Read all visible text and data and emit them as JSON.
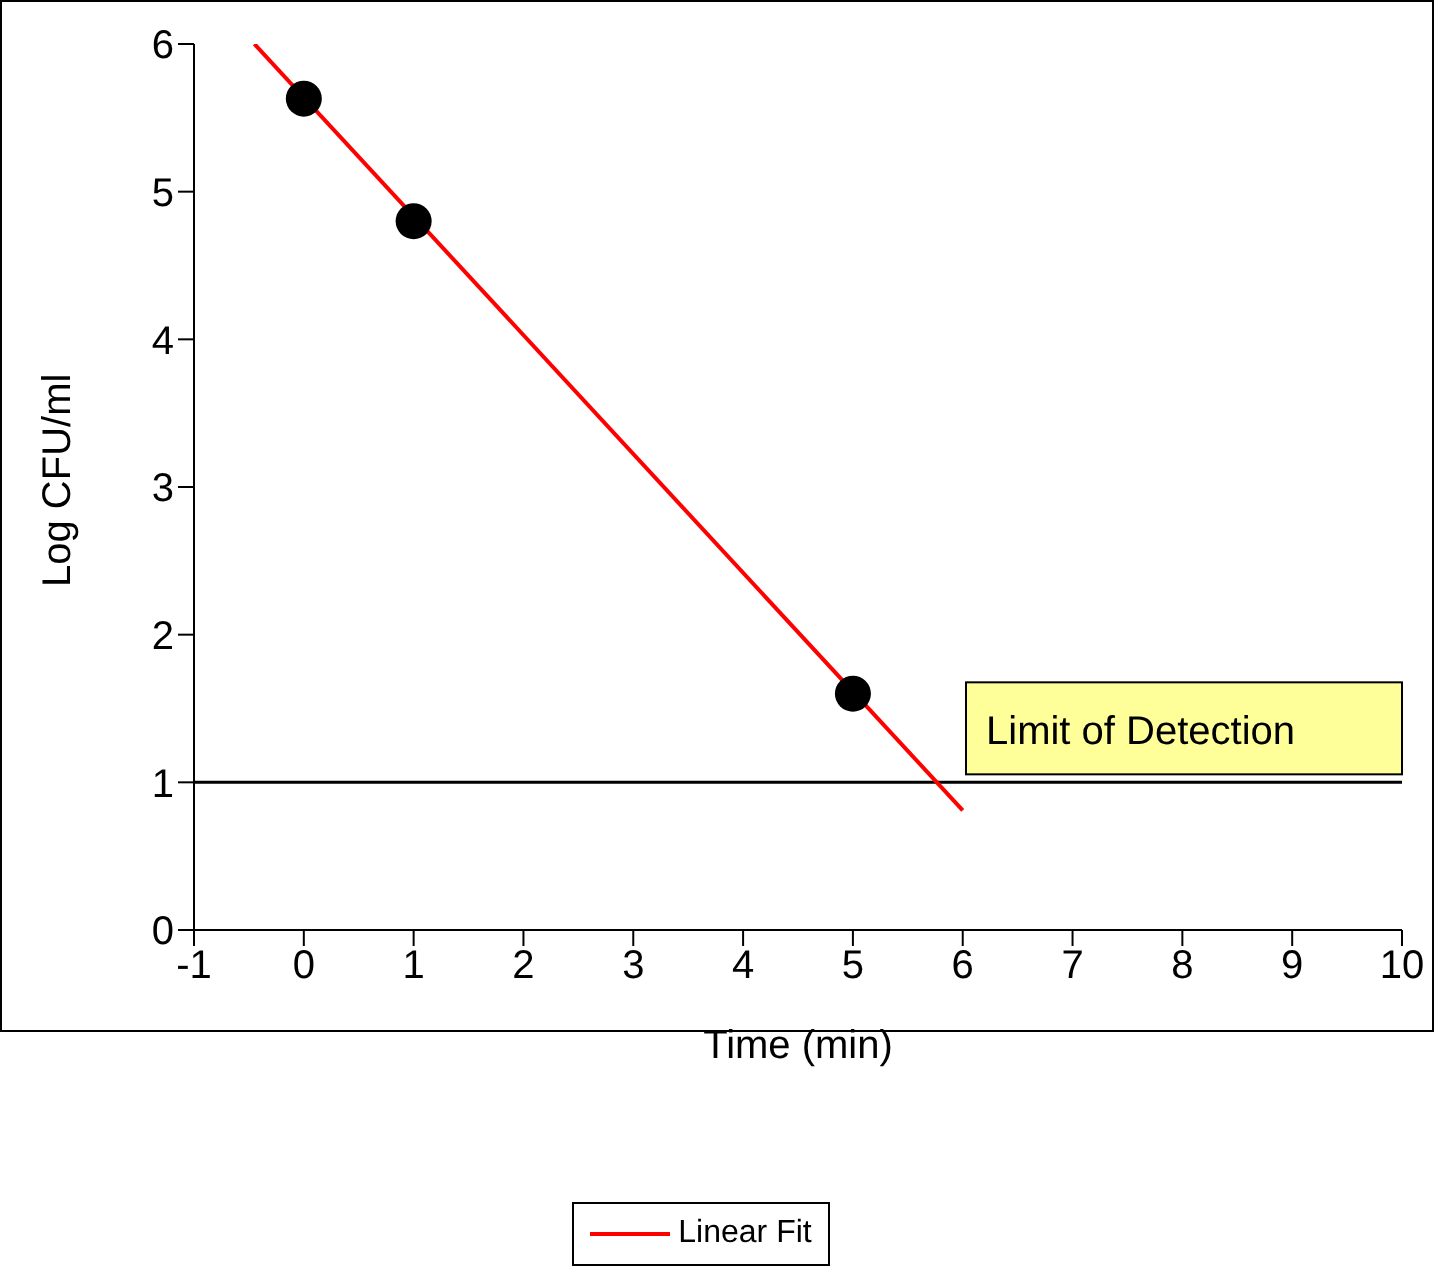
{
  "chart_data": {
    "type": "scatter",
    "xlabel": "Time (min)",
    "ylabel": "Log CFU/ml",
    "xlim": [
      -1,
      10
    ],
    "ylim": [
      0,
      6
    ],
    "xticks": [
      -1,
      0,
      1,
      2,
      3,
      4,
      5,
      6,
      7,
      8,
      9,
      10
    ],
    "yticks": [
      0,
      1,
      2,
      3,
      4,
      5,
      6
    ],
    "grid": false,
    "legend": "bottom",
    "marker": "circle",
    "series": [
      {
        "color": "#000000",
        "x": [
          0,
          1,
          5
        ],
        "values": [
          5.63,
          4.8,
          1.6
        ]
      },
      {
        "type": "line",
        "name": "Linear Fit",
        "color": "#ff0000",
        "marker": "none",
        "x": [
          -0.45,
          6
        ],
        "values": [
          6,
          0.81
        ]
      }
    ],
    "ref_lines": [
      {
        "axis": "y",
        "value": 1,
        "label": "Limit of Detection",
        "color": "#000000"
      }
    ]
  }
}
